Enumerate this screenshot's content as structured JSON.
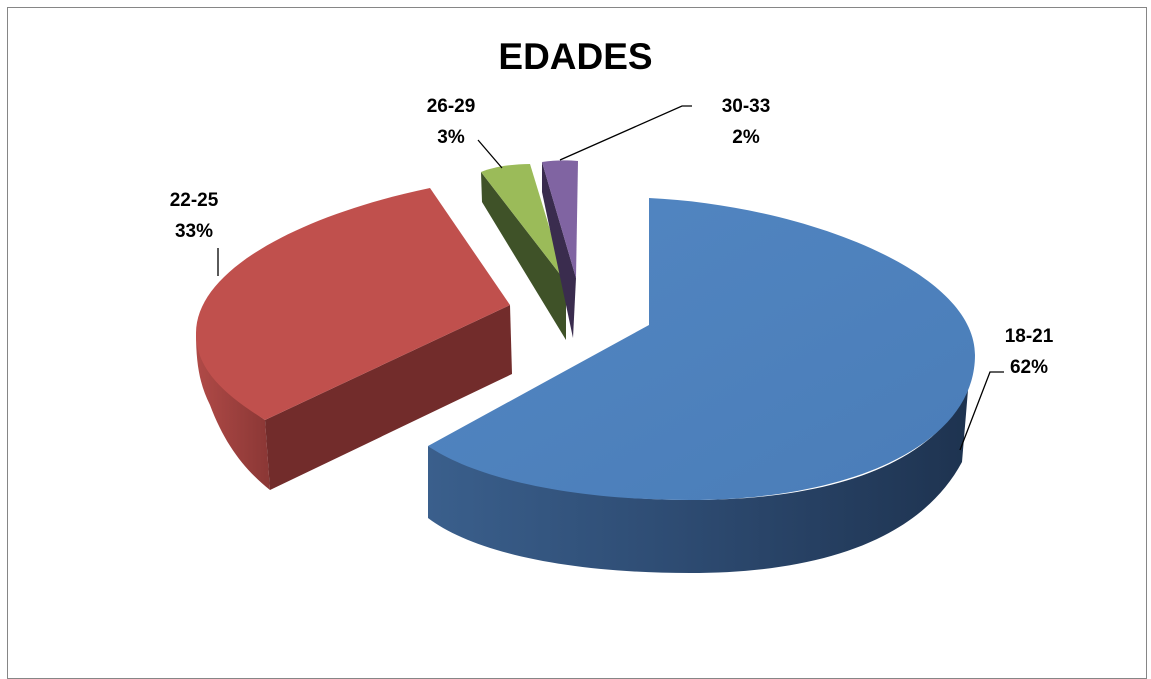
{
  "chart_data": {
    "type": "pie",
    "title": "EDADES",
    "slices": [
      {
        "label": "18-21",
        "pct_label": "62%",
        "value": 62,
        "color": "#4f81bd"
      },
      {
        "label": "22-25",
        "pct_label": "33%",
        "value": 33,
        "color": "#c0504d"
      },
      {
        "label": "26-29",
        "pct_label": "3%",
        "value": 3,
        "color": "#9bbb59"
      },
      {
        "label": "30-33",
        "pct_label": "2%",
        "value": 2,
        "color": "#8064a2"
      }
    ],
    "style": "3d-exploded",
    "legend": "none"
  }
}
